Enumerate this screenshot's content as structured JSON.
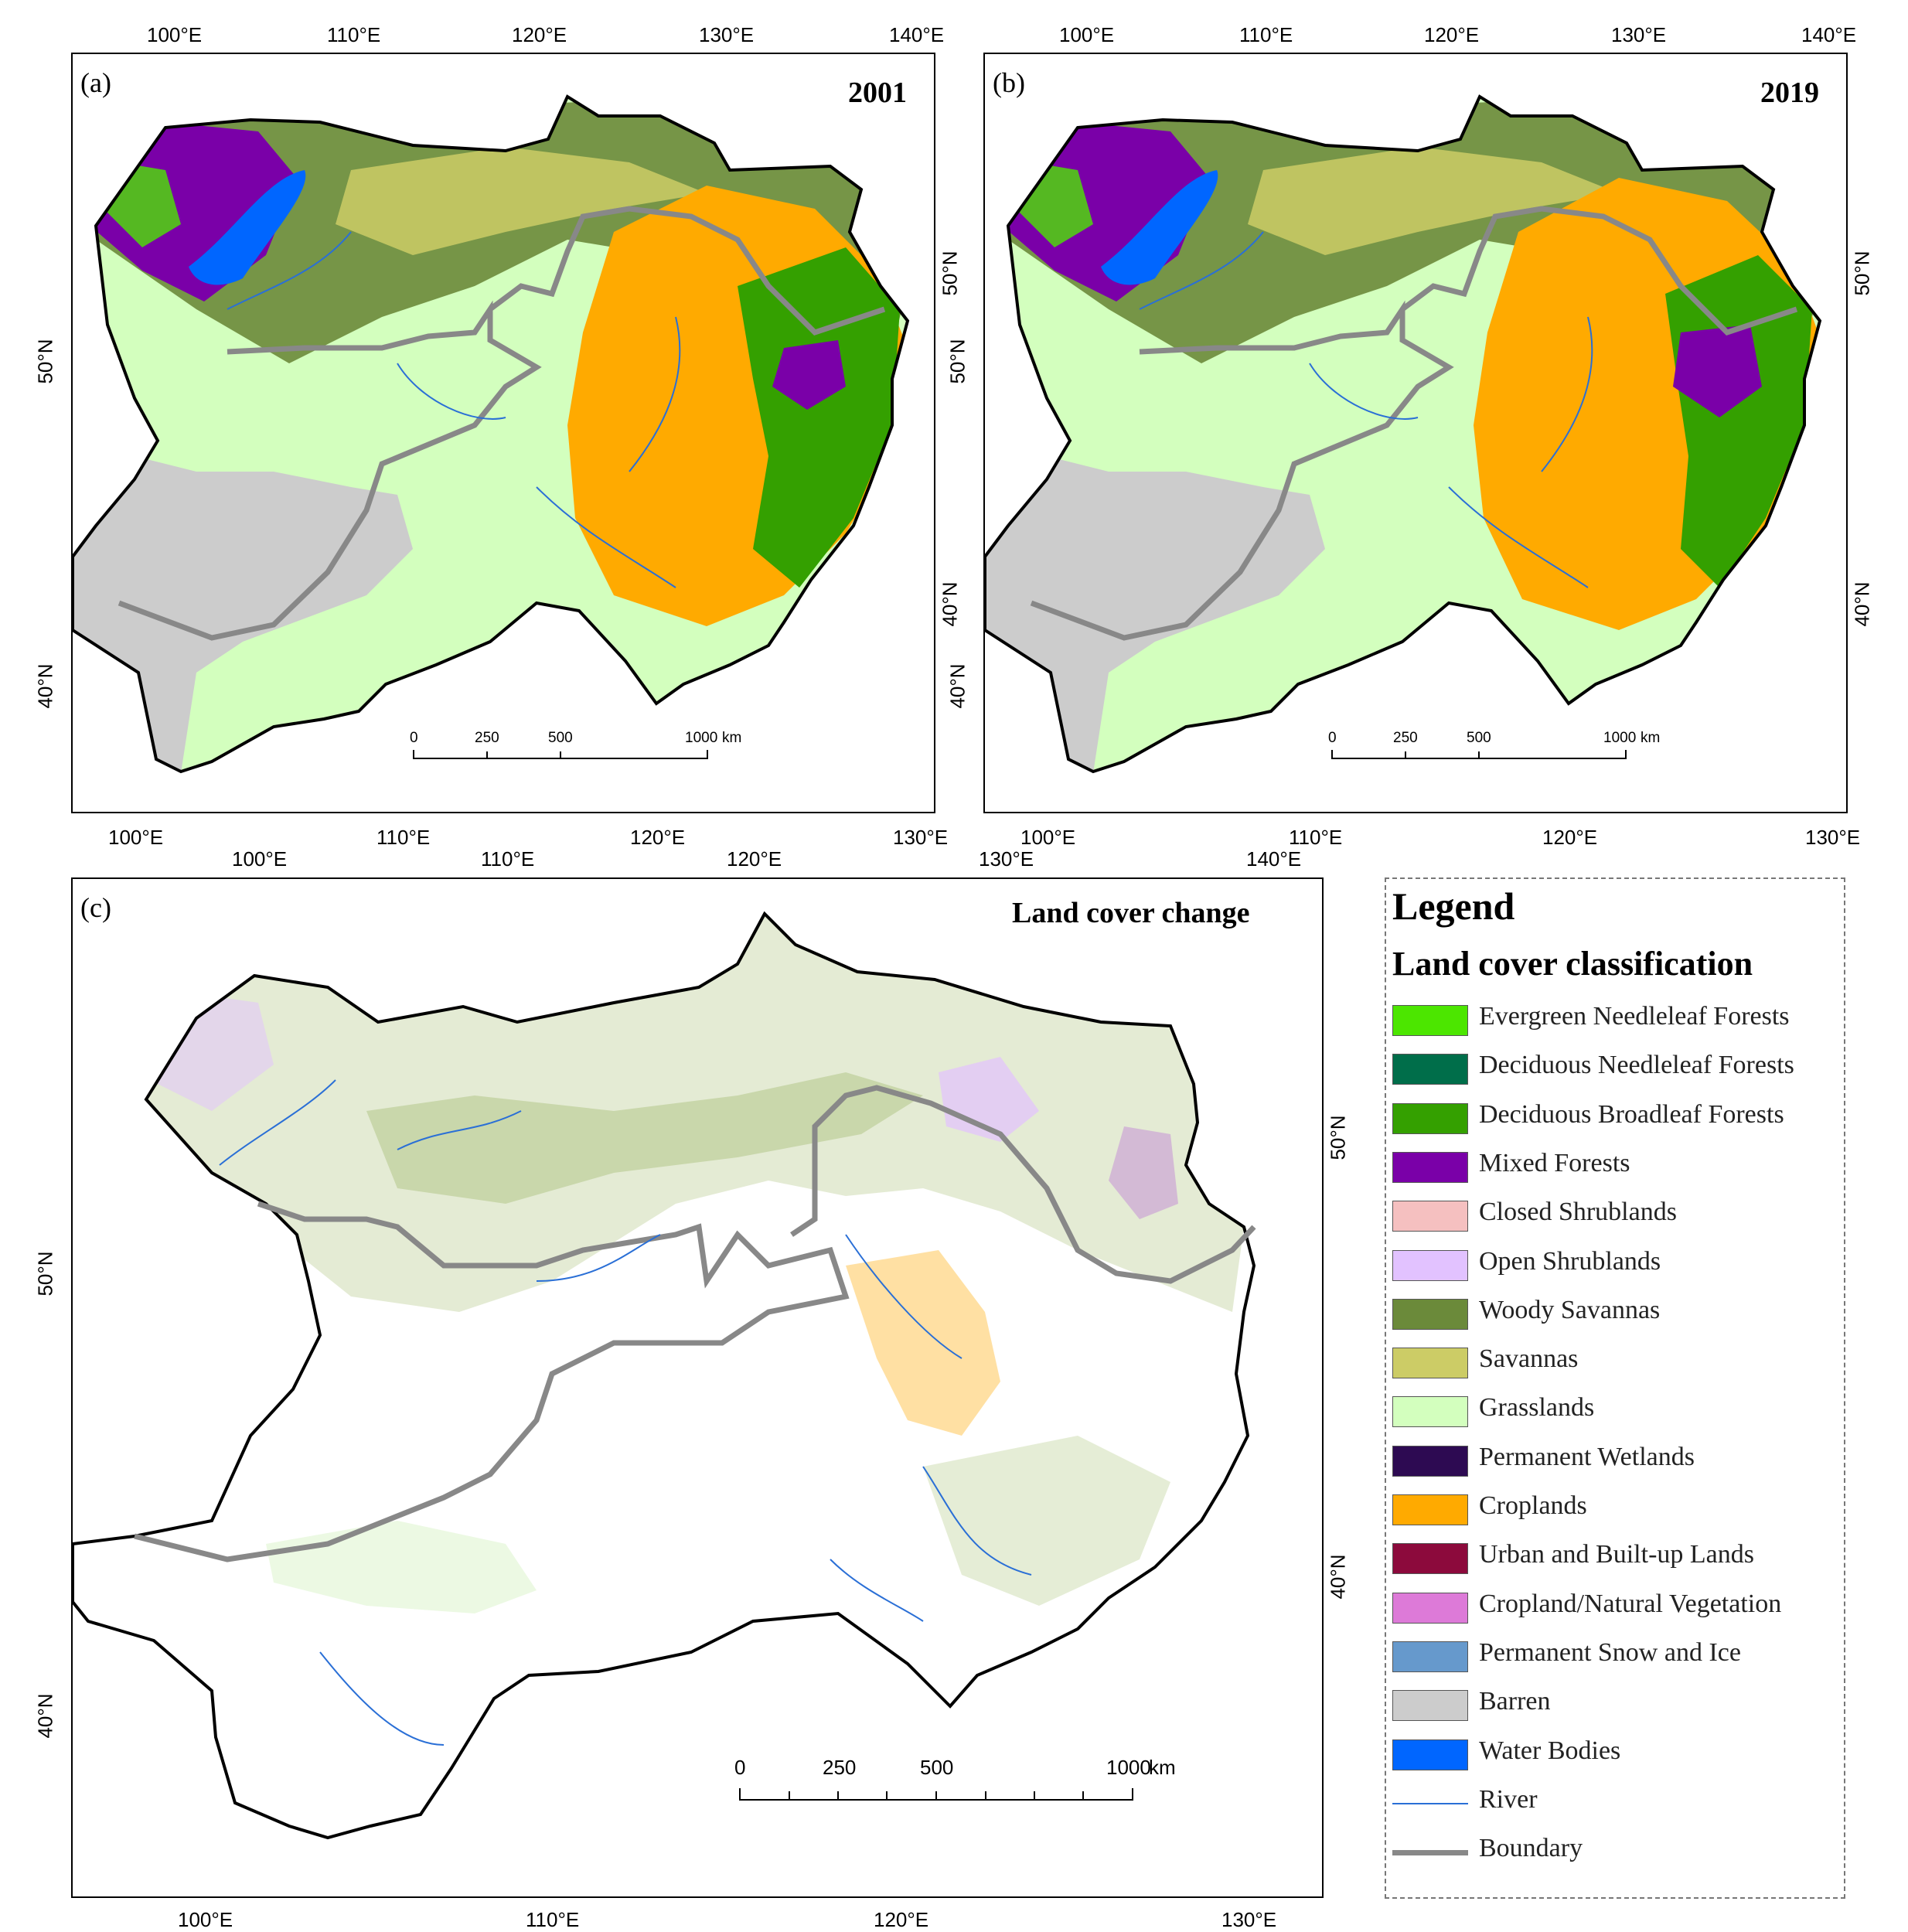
{
  "panels": {
    "a": {
      "letter": "(a)",
      "year": "2001"
    },
    "b": {
      "letter": "(b)",
      "year": "2019"
    },
    "c": {
      "letter": "(c)",
      "title": "Land cover change"
    }
  },
  "ticks": {
    "ab_top": [
      "100°E",
      "110°E",
      "120°E",
      "130°E",
      "140°E"
    ],
    "ab_bottom": [
      "100°E",
      "110°E",
      "120°E",
      "130°E"
    ],
    "ab_left": [
      "50°N",
      "40°N"
    ],
    "ab_right": [
      "50°N",
      "40°N"
    ],
    "c_top": [
      "100°E",
      "110°E",
      "120°E",
      "130°E",
      "140°E"
    ],
    "c_bottom": [
      "100°E",
      "110°E",
      "120°E",
      "130°E"
    ],
    "c_left": [
      "50°N",
      "40°N"
    ],
    "c_right": [
      "50°N",
      "40°N"
    ]
  },
  "scale_bar": {
    "labels": [
      "0",
      "250",
      "500",
      "1000"
    ],
    "unit": "km"
  },
  "legend": {
    "title": "Legend",
    "subtitle": "Land cover classification",
    "items": [
      {
        "label": "Evergreen Needleleaf Forests",
        "color": "#4ce600"
      },
      {
        "label": "Deciduous Needleleaf Forests",
        "color": "#006e4a"
      },
      {
        "label": "Deciduous Broadleaf Forests",
        "color": "#34a000"
      },
      {
        "label": "Mixed Forests",
        "color": "#7a00a8"
      },
      {
        "label": "Closed Shrublands",
        "color": "#f5c0c0"
      },
      {
        "label": "Open Shrublands",
        "color": "#e2c2ff"
      },
      {
        "label": "Woody Savannas",
        "color": "#6b8a3a"
      },
      {
        "label": "Savannas",
        "color": "#cccc66"
      },
      {
        "label": "Grasslands",
        "color": "#d3ffbe"
      },
      {
        "label": "Permanent Wetlands",
        "color": "#2d0a52"
      },
      {
        "label": "Croplands",
        "color": "#ffaa00"
      },
      {
        "label": "Urban and Built-up Lands",
        "color": "#8c0a3c"
      },
      {
        "label": "Cropland/Natural Vegetation",
        "color": "#dd7ad8"
      },
      {
        "label": "Permanent Snow and Ice",
        "color": "#6699cc"
      },
      {
        "label": "Barren",
        "color": "#cccccc"
      },
      {
        "label": "Water Bodies",
        "color": "#0066ff"
      },
      {
        "label": "River",
        "color": "#2a6fd6"
      },
      {
        "label": "Boundary",
        "color": "#888888"
      }
    ]
  }
}
